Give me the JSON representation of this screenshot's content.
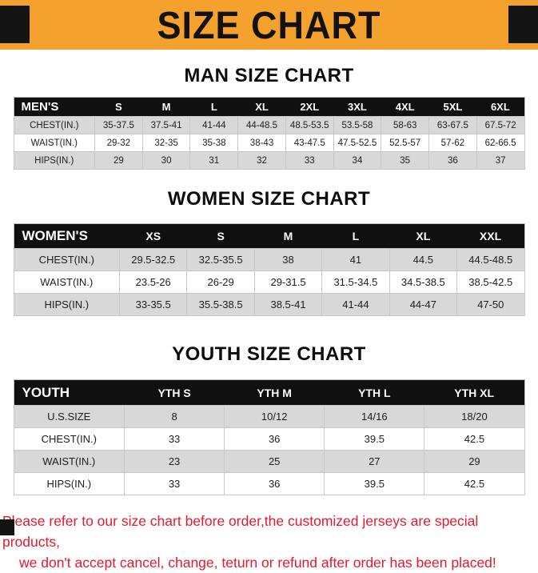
{
  "banner": {
    "title": "SIZE CHART"
  },
  "colors": {
    "banner_bg": "#F5A12D",
    "table_header_bg": "#101010",
    "shaded_row": "#d8d8d8",
    "footer_text": "#e6192e",
    "corner_block": "#141414"
  },
  "footer": {
    "line1": "Please refer to our size chart before order,the customized jerseys are special products,",
    "line2": "we don't accept cancel, change, teturn or refund after order has been placed!"
  },
  "chart_data": [
    {
      "type": "table",
      "title": "MAN SIZE CHART",
      "columns": [
        "MEN'S",
        "S",
        "M",
        "L",
        "XL",
        "2XL",
        "3XL",
        "4XL",
        "5XL",
        "6XL"
      ],
      "rows": [
        [
          "CHEST(IN.)",
          "35-37.5",
          "37.5-41",
          "41-44",
          "44-48.5",
          "48.5-53.5",
          "53.5-58",
          "58-63",
          "63-67.5",
          "67.5-72"
        ],
        [
          "WAIST(IN.)",
          "29-32",
          "32-35",
          "35-38",
          "38-43",
          "43-47.5",
          "47.5-52.5",
          "52.5-57",
          "57-62",
          "62-66.5"
        ],
        [
          "HIPS(IN.)",
          "29",
          "30",
          "31",
          "32",
          "33",
          "34",
          "35",
          "36",
          "37"
        ]
      ],
      "shaded_rows": [
        0,
        2
      ]
    },
    {
      "type": "table",
      "title": "WOMEN SIZE CHART",
      "columns": [
        "WOMEN'S",
        "XS",
        "S",
        "M",
        "L",
        "XL",
        "XXL"
      ],
      "rows": [
        [
          "CHEST(IN.)",
          "29.5-32.5",
          "32.5-35.5",
          "38",
          "41",
          "44.5",
          "44.5-48.5"
        ],
        [
          "WAIST(IN.)",
          "23.5-26",
          "26-29",
          "29-31.5",
          "31.5-34.5",
          "34.5-38.5",
          "38.5-42.5"
        ],
        [
          "HIPS(IN.)",
          "33-35.5",
          "35.5-38.5",
          "38.5-41",
          "41-44",
          "44-47",
          "47-50"
        ]
      ],
      "shaded_rows": [
        0,
        2
      ]
    },
    {
      "type": "table",
      "title": "YOUTH SIZE CHART",
      "columns": [
        "YOUTH",
        "YTH S",
        "YTH M",
        "YTH L",
        "YTH XL"
      ],
      "rows": [
        [
          "U.S.SIZE",
          "8",
          "10/12",
          "14/16",
          "18/20"
        ],
        [
          "CHEST(IN.)",
          "33",
          "36",
          "39.5",
          "42.5"
        ],
        [
          "WAIST(IN.)",
          "23",
          "25",
          "27",
          "29"
        ],
        [
          "HIPS(IN.)",
          "33",
          "36",
          "39.5",
          "42.5"
        ]
      ],
      "shaded_rows": [
        0,
        2
      ]
    }
  ]
}
